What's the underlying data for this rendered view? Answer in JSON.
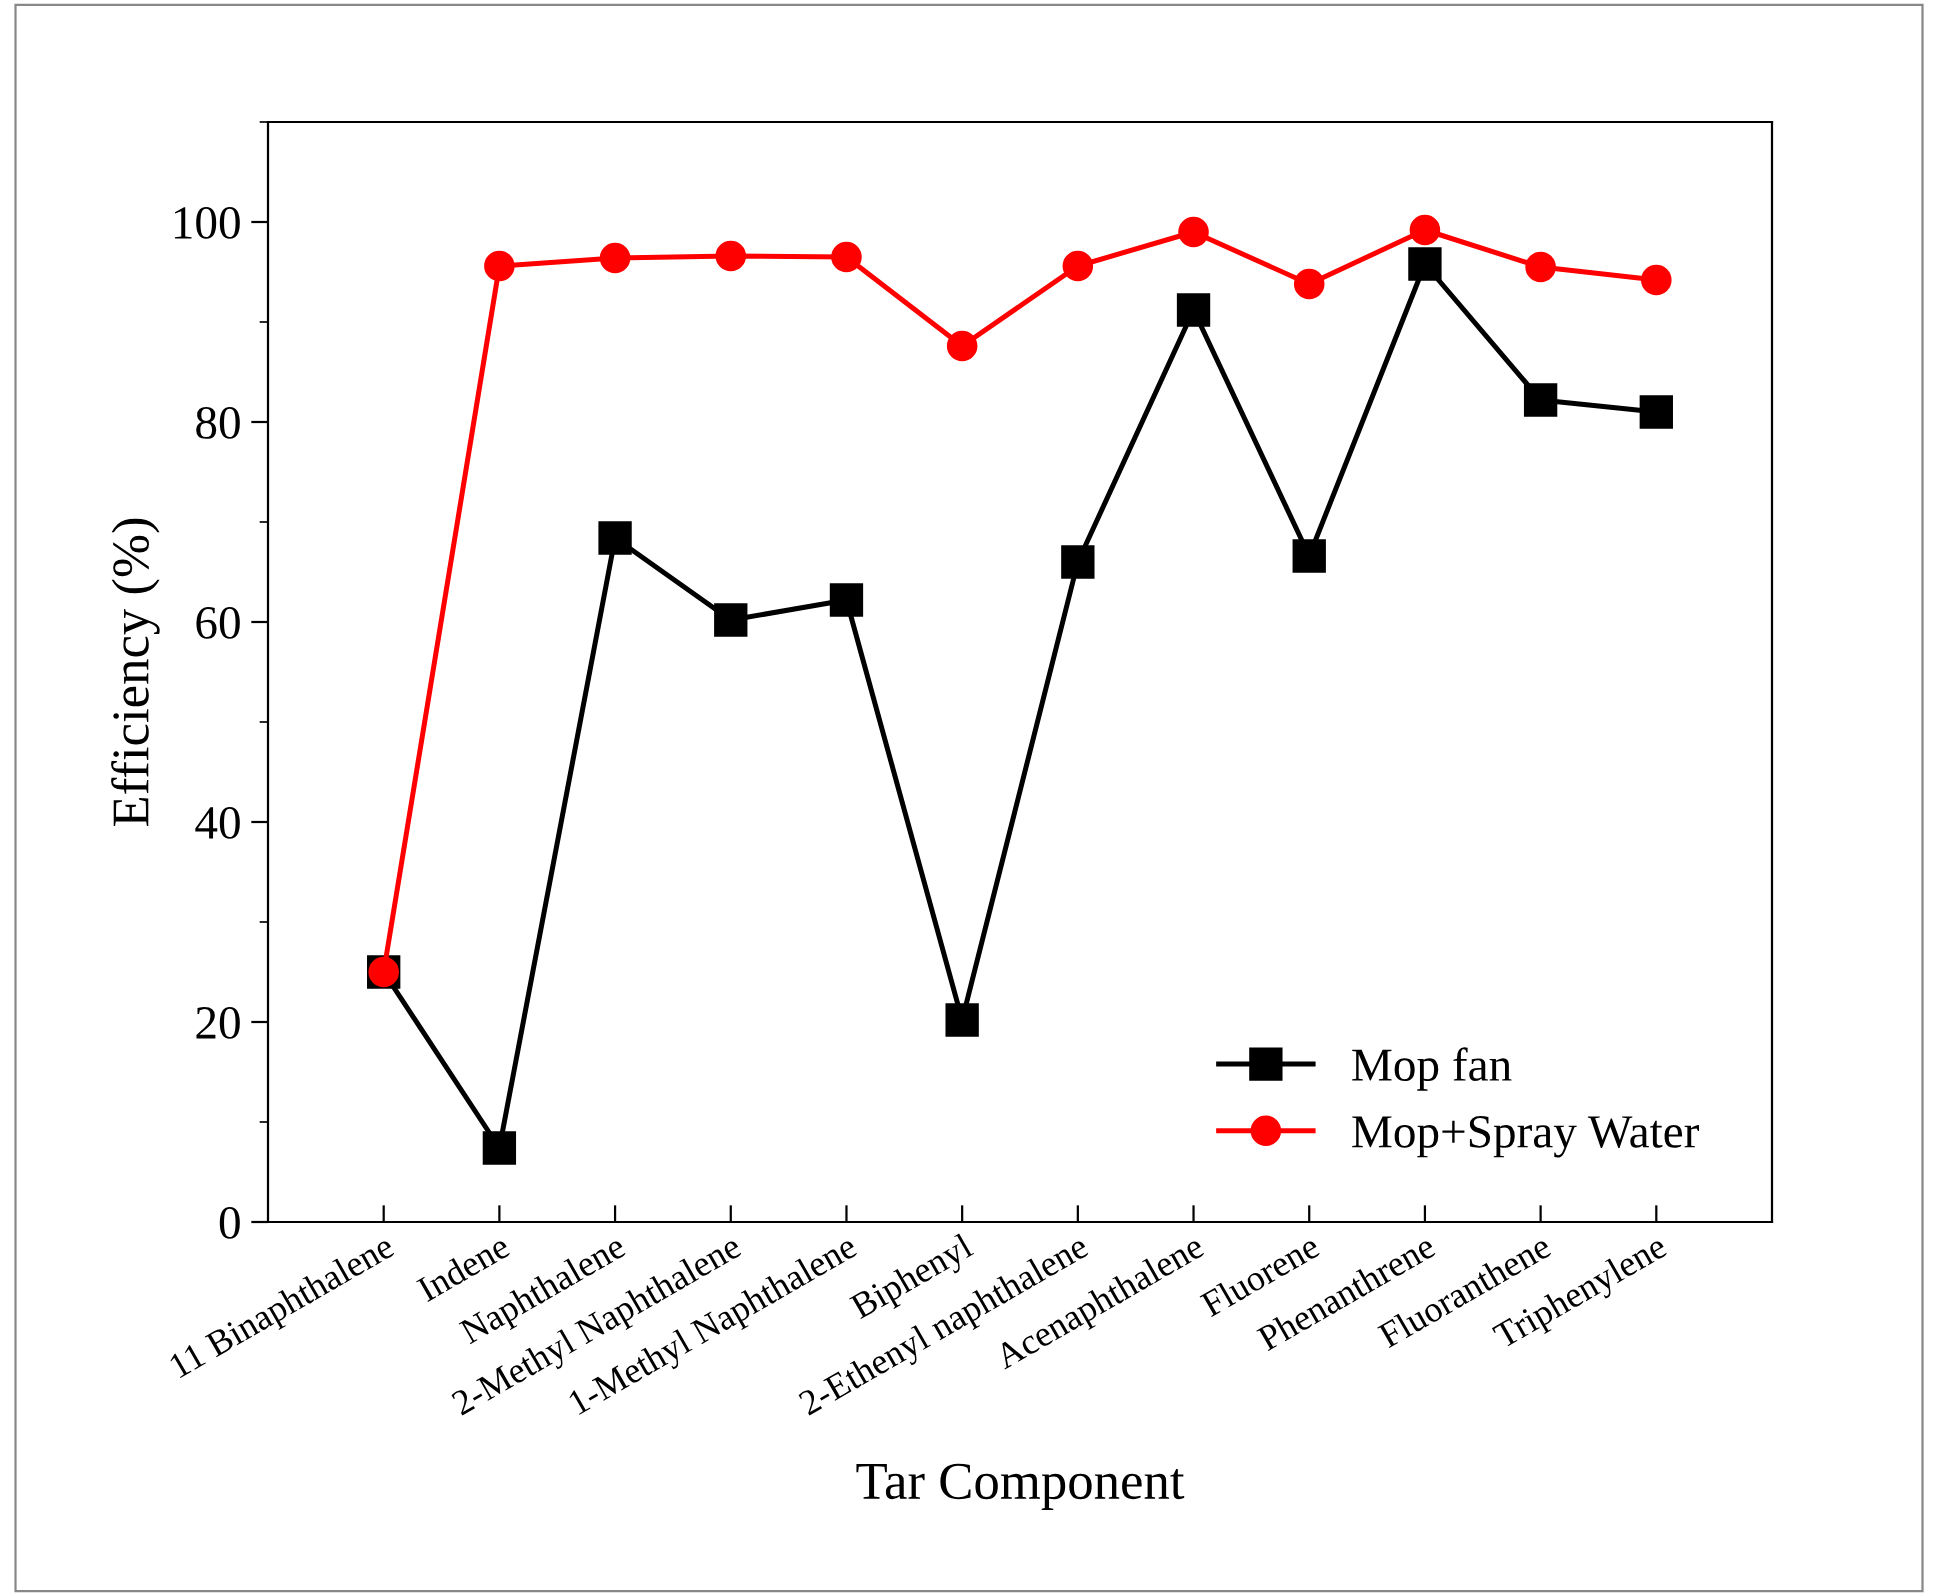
{
  "chart_data": {
    "type": "line",
    "xlabel": "Tar Component",
    "ylabel": "Efficiency (%)",
    "categories": [
      "11 Binaphthalene",
      "Indene",
      "Naphthalene",
      "2-Methyl Naphthalene",
      "1-Methyl Naphthalene",
      "Biphenyl",
      "2-Ethenyl naphthalene",
      "Acenaphthalene",
      "Fluorene",
      "Phenanthrene",
      "Fluoranthene",
      "Triphenylene"
    ],
    "series": [
      {
        "name": "Mop fan",
        "color": "#000000",
        "marker": "square",
        "values": [
          25,
          7.4,
          68.4,
          60.2,
          62.2,
          20.2,
          66,
          91.2,
          66.6,
          95.8,
          82.2,
          81
        ]
      },
      {
        "name": "Mop+Spray Water",
        "color": "#ff0000",
        "marker": "circle",
        "values": [
          25,
          95.6,
          96.4,
          96.6,
          96.5,
          87.6,
          95.6,
          99,
          93.8,
          99.2,
          95.5,
          94.2
        ]
      }
    ],
    "ylim": [
      0,
      110
    ],
    "yticks": [
      0,
      20,
      40,
      60,
      80,
      100
    ],
    "grid": false,
    "legend": "bottom right",
    "line_style": "solid"
  }
}
